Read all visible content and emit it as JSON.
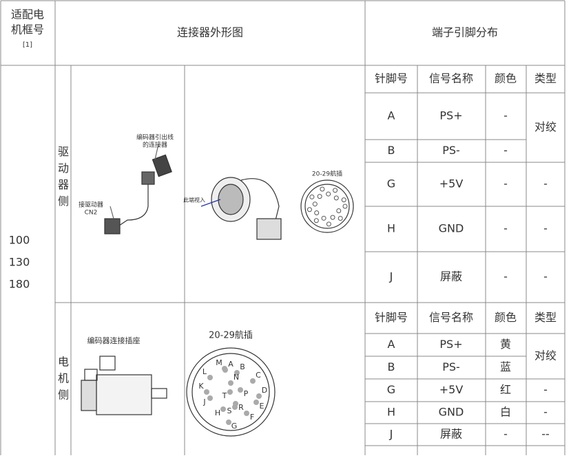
{
  "header": {
    "frame": [
      "适配电",
      "机框号"
    ],
    "frame_note": "[1]",
    "connector": "连接器外形图",
    "pins": "端子引脚分布"
  },
  "frames": [
    "100",
    "130",
    "180"
  ],
  "sections": [
    {
      "side": [
        "驱",
        "动",
        "器",
        "侧"
      ],
      "image_labels": {
        "lead": [
          "编码器引出线",
          "的连接器"
        ],
        "drive": [
          "接驱动器",
          "CN2"
        ],
        "view": "此端视入",
        "plug": "20-29航插"
      },
      "columns": [
        "针脚号",
        "信号名称",
        "颜色",
        "类型"
      ],
      "rows": [
        [
          "A",
          "PS+",
          "-"
        ],
        [
          "B",
          "PS-",
          "-"
        ],
        [
          "G",
          "+5V",
          "-"
        ],
        [
          "H",
          "GND",
          "-"
        ],
        [
          "J",
          "屏蔽",
          "-"
        ]
      ],
      "types": [
        "对绞",
        "-",
        "-",
        "-"
      ]
    },
    {
      "side": [
        "电",
        "机",
        "侧"
      ],
      "image_labels": {
        "socket": "编码器连接插座",
        "plug": "20-29航插"
      },
      "pin_letters": [
        "A",
        "B",
        "C",
        "D",
        "E",
        "F",
        "G",
        "H",
        "J",
        "K",
        "L",
        "M",
        "N",
        "P",
        "R",
        "S",
        "T"
      ],
      "columns": [
        "针脚号",
        "信号名称",
        "颜色",
        "类型"
      ],
      "rows": [
        [
          "A",
          "PS+",
          "黄"
        ],
        [
          "B",
          "PS-",
          "蓝"
        ],
        [
          "G",
          "+5V",
          "红"
        ],
        [
          "H",
          "GND",
          "白"
        ],
        [
          "J",
          "屏蔽",
          "-"
        ]
      ],
      "types": [
        "对绞",
        "-",
        "-",
        "--"
      ]
    }
  ]
}
